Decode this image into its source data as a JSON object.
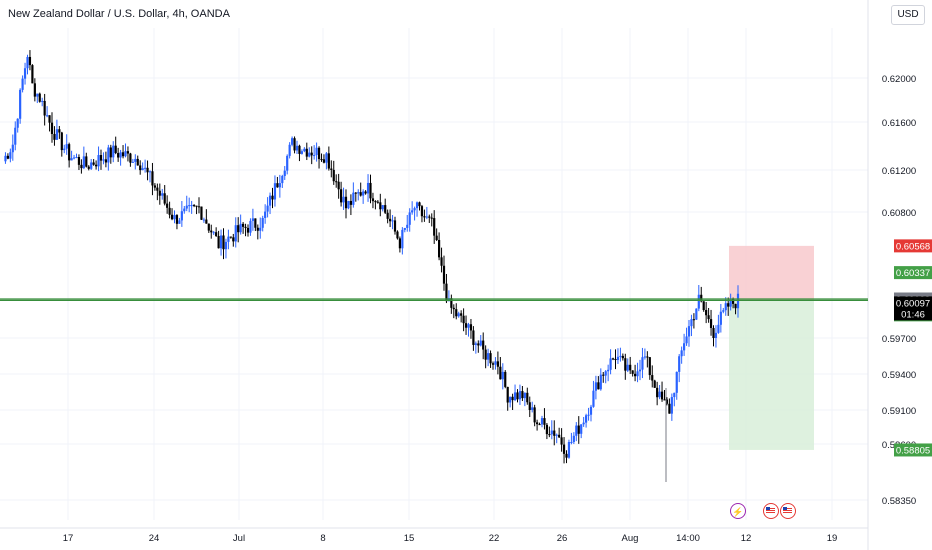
{
  "header": {
    "title": "New Zealand Dollar / U.S. Dollar, 4h, OANDA",
    "currency_button": "USD"
  },
  "colors": {
    "up": "#2962ff",
    "down": "#000000",
    "green_line": "#388e3c",
    "stop_zone": "#f8c9cd",
    "target_zone": "#d8efd9",
    "red_label": "#e53935",
    "green_label": "#43a047",
    "grey_label": "#787b86",
    "dark_label": "#000000"
  },
  "chart_data": {
    "type": "candlestick",
    "title": "New Zealand Dollar / U.S. Dollar, 4h, OANDA",
    "ylim": [
      0.582,
      0.6245
    ],
    "y_ticks": [
      "0.62000",
      "0.61600",
      "0.61200",
      "0.60800",
      "0.59700",
      "0.59400",
      "0.59100",
      "0.58600",
      "0.58350"
    ],
    "x_ticks": [
      "17",
      "24",
      "Jul",
      "8",
      "15",
      "22",
      "26",
      "Aug",
      "14:00",
      "12",
      "19"
    ],
    "grid": true,
    "anchors": [
      [
        0,
        0.613
      ],
      [
        4,
        0.6145
      ],
      [
        8,
        0.62
      ],
      [
        10,
        0.6223
      ],
      [
        12,
        0.6195
      ],
      [
        15,
        0.6185
      ],
      [
        20,
        0.6158
      ],
      [
        27,
        0.6135
      ],
      [
        34,
        0.6126
      ],
      [
        45,
        0.6138
      ],
      [
        55,
        0.6132
      ],
      [
        62,
        0.6108
      ],
      [
        70,
        0.608
      ],
      [
        80,
        0.609
      ],
      [
        88,
        0.6058
      ],
      [
        98,
        0.6072
      ],
      [
        106,
        0.6078
      ],
      [
        112,
        0.6112
      ],
      [
        118,
        0.6145
      ],
      [
        124,
        0.614
      ],
      [
        132,
        0.6135
      ],
      [
        140,
        0.609
      ],
      [
        148,
        0.6108
      ],
      [
        154,
        0.6095
      ],
      [
        162,
        0.606
      ],
      [
        168,
        0.609
      ],
      [
        175,
        0.6075
      ],
      [
        182,
        0.6005
      ],
      [
        188,
        0.599
      ],
      [
        196,
        0.5965
      ],
      [
        202,
        0.5955
      ],
      [
        206,
        0.5928
      ],
      [
        212,
        0.5928
      ],
      [
        218,
        0.5905
      ],
      [
        226,
        0.5895
      ],
      [
        230,
        0.588
      ],
      [
        238,
        0.5912
      ],
      [
        244,
        0.5945
      ],
      [
        250,
        0.5962
      ],
      [
        256,
        0.5945
      ],
      [
        262,
        0.596
      ],
      [
        268,
        0.5925
      ],
      [
        272,
        0.5915
      ],
      [
        278,
        0.5975
      ],
      [
        284,
        0.601
      ],
      [
        290,
        0.5983
      ],
      [
        296,
        0.6005
      ],
      [
        300,
        0.601
      ]
    ],
    "candles_total": 300,
    "price_levels": {
      "stop": "0.60568",
      "entry_upper": "0.60337",
      "line_upper": "0.60109",
      "line_lower": "0.60102",
      "current": "0.60097",
      "countdown": "01:46",
      "target": "0.58805"
    },
    "horizontal_lines": [
      0.60109,
      0.60097
    ],
    "position": {
      "type": "long",
      "entry": 0.60097,
      "stop": 0.60568,
      "target": 0.58805
    }
  },
  "events": {
    "bolt_icon": "lightning-icon",
    "flag_icon": "us-flag-icon"
  }
}
